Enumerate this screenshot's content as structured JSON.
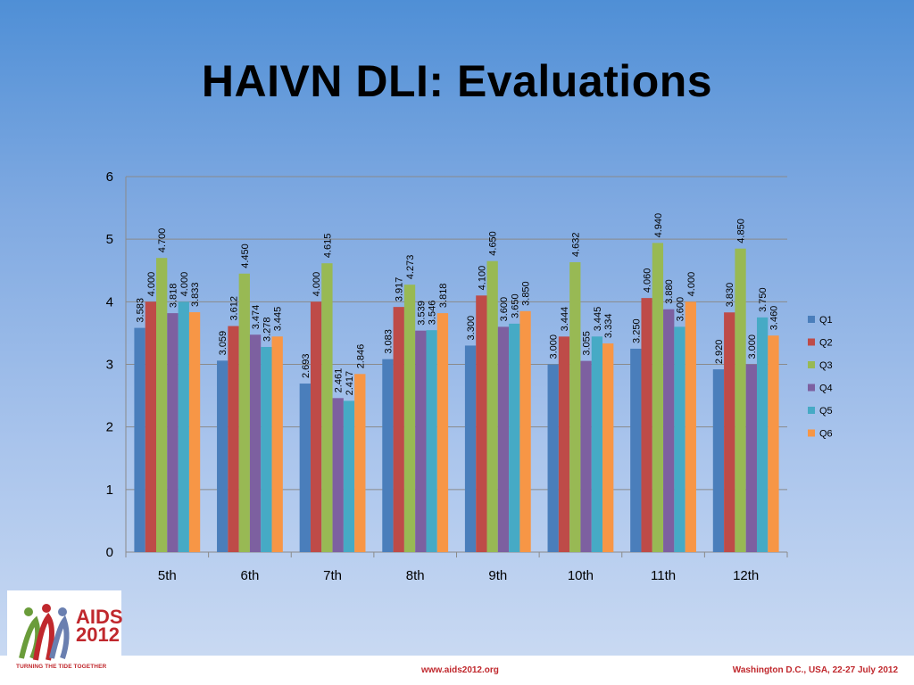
{
  "slide": {
    "title": "HAIVN DLI: Evaluations",
    "footer_url": "www.aids2012.org",
    "footer_place": "Washington D.C., USA, 22-27 July 2012",
    "logo_main_line1": "AIDS",
    "logo_main_line2": "2012",
    "logo_tagline": "TURNING THE TIDE TOGETHER"
  },
  "chart_data": {
    "type": "bar",
    "categories": [
      "5th",
      "6th",
      "7th",
      "8th",
      "9th",
      "10th",
      "11th",
      "12th"
    ],
    "ylim": [
      0,
      6
    ],
    "yticks": [
      "0",
      "1",
      "2",
      "3",
      "4",
      "5",
      "6"
    ],
    "grid": true,
    "legend_position": "right",
    "series": [
      {
        "name": "Q1",
        "color": "#4a7ebb",
        "values": [
          3.583,
          3.059,
          2.693,
          3.083,
          3.3,
          3.0,
          3.25,
          2.92
        ],
        "labels": [
          "3.583",
          "3.059",
          "2.693",
          "3.083",
          "3.300",
          "3.000",
          "3.250",
          "2.920"
        ]
      },
      {
        "name": "Q2",
        "color": "#be4b48",
        "values": [
          4.0,
          3.612,
          4.0,
          3.917,
          4.1,
          3.444,
          4.06,
          3.83
        ],
        "labels": [
          "4.000",
          "3.612",
          "4.000",
          "3.917",
          "4.100",
          "3.444",
          "4.060",
          "3.830"
        ]
      },
      {
        "name": "Q3",
        "color": "#98b954",
        "values": [
          4.7,
          4.45,
          4.615,
          4.273,
          4.65,
          4.632,
          4.94,
          4.85
        ],
        "labels": [
          "4.700",
          "4.450",
          "4.615",
          "4.273",
          "4.650",
          "4.632",
          "4.940",
          "4.850"
        ]
      },
      {
        "name": "Q4",
        "color": "#7d60a0",
        "values": [
          3.818,
          3.474,
          2.461,
          3.539,
          3.6,
          3.055,
          3.88,
          3.0
        ],
        "labels": [
          "3.818",
          "3.474",
          "2.461",
          "3.539",
          "3.600",
          "3.055",
          "3.880",
          "3.000"
        ]
      },
      {
        "name": "Q5",
        "color": "#46aac5",
        "values": [
          4.0,
          3.278,
          2.417,
          3.546,
          3.65,
          3.445,
          3.6,
          3.75
        ],
        "labels": [
          "4.000",
          "3.278",
          "2.417",
          "3.546",
          "3.650",
          "3.445",
          "3.600",
          "3.750"
        ]
      },
      {
        "name": "Q6",
        "color": "#f79646",
        "values": [
          3.833,
          3.445,
          2.846,
          3.818,
          3.85,
          3.334,
          4.0,
          3.46
        ],
        "labels": [
          "3.833",
          "3.445",
          "2.846",
          "3.818",
          "3.850",
          "3.334",
          "4.000",
          "3.460"
        ]
      }
    ]
  }
}
